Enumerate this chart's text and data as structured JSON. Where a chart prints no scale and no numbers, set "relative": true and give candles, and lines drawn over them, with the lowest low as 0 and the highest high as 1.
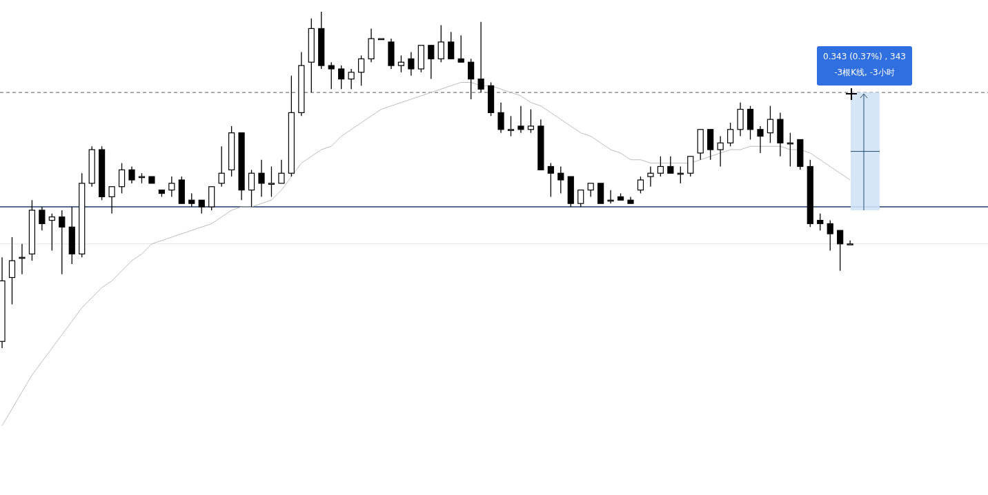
{
  "chart_data": {
    "type": "candlestick",
    "relative": true,
    "color": "#000000",
    "categories": [
      null,
      null,
      null,
      null,
      null,
      null,
      null,
      null,
      null,
      null,
      null,
      null,
      null,
      null,
      null,
      null,
      null,
      null,
      null,
      null,
      null,
      null,
      null,
      null,
      null,
      null,
      null,
      null,
      null,
      null,
      null,
      null,
      null,
      null,
      null,
      null,
      null,
      null,
      null,
      null,
      null,
      null,
      null,
      null,
      null,
      null,
      null,
      null,
      null,
      null,
      null,
      null,
      null,
      null,
      null,
      null,
      null,
      null,
      null,
      null,
      null,
      null,
      null,
      null,
      null,
      null,
      null,
      null,
      null,
      null,
      null,
      null,
      null,
      null,
      null,
      null,
      null,
      null,
      null,
      null,
      null,
      null,
      null,
      null,
      null,
      null,
      null,
      null,
      null,
      null,
      null,
      null,
      null,
      null,
      null,
      null,
      null,
      null,
      null
    ],
    "ohlc": [
      [
        0.02,
        0.27,
        0,
        0.2
      ],
      [
        0.21,
        0.33,
        0.13,
        0.26
      ],
      [
        0.27,
        0.31,
        0.22,
        0.27
      ],
      [
        0.28,
        0.44,
        0.26,
        0.41
      ],
      [
        0.41,
        0.42,
        0.35,
        0.37
      ],
      [
        0.38,
        0.4,
        0.29,
        0.39
      ],
      [
        0.39,
        0.41,
        0.22,
        0.36
      ],
      [
        0.36,
        0.42,
        0.25,
        0.28
      ],
      [
        0.28,
        0.52,
        0.27,
        0.49
      ],
      [
        0.49,
        0.6,
        0.48,
        0.59
      ],
      [
        0.59,
        0.6,
        0.44,
        0.45
      ],
      [
        0.45,
        0.48,
        0.4,
        0.48
      ],
      [
        0.48,
        0.55,
        0.46,
        0.53
      ],
      [
        0.53,
        0.54,
        0.49,
        0.5
      ],
      [
        0.51,
        0.52,
        0.49,
        0.51
      ],
      [
        0.51,
        0.51,
        0.49,
        0.49
      ],
      [
        0.47,
        0.47,
        0.45,
        0.46
      ],
      [
        0.47,
        0.51,
        0.45,
        0.49
      ],
      [
        0.5,
        0.51,
        0.43,
        0.43
      ],
      [
        0.44,
        0.46,
        0.42,
        0.43
      ],
      [
        0.44,
        0.44,
        0.4,
        0.42
      ],
      [
        0.42,
        0.48,
        0.41,
        0.48
      ],
      [
        0.49,
        0.6,
        0.48,
        0.52
      ],
      [
        0.53,
        0.66,
        0.51,
        0.64
      ],
      [
        0.64,
        0.64,
        0.44,
        0.47
      ],
      [
        0.47,
        0.53,
        0.42,
        0.52
      ],
      [
        0.52,
        0.56,
        0.45,
        0.49
      ],
      [
        0.49,
        0.54,
        0.45,
        0.49
      ],
      [
        0.49,
        0.56,
        0.49,
        0.52
      ],
      [
        0.52,
        0.81,
        0.51,
        0.7
      ],
      [
        0.7,
        0.88,
        0.69,
        0.84
      ],
      [
        0.85,
        0.98,
        0.76,
        0.95
      ],
      [
        0.95,
        1,
        0.83,
        0.84
      ],
      [
        0.84,
        0.85,
        0.77,
        0.83
      ],
      [
        0.83,
        0.84,
        0.77,
        0.8
      ],
      [
        0.8,
        0.83,
        0.77,
        0.82
      ],
      [
        0.82,
        0.87,
        0.78,
        0.86
      ],
      [
        0.86,
        0.95,
        0.85,
        0.92
      ],
      [
        0.92,
        0.92,
        0.92,
        0.92
      ],
      [
        0.91,
        0.92,
        0.83,
        0.84
      ],
      [
        0.84,
        0.87,
        0.82,
        0.85
      ],
      [
        0.86,
        0.88,
        0.81,
        0.83
      ],
      [
        0.83,
        0.9,
        0.82,
        0.9
      ],
      [
        0.9,
        0.9,
        0.8,
        0.86
      ],
      [
        0.86,
        0.96,
        0.85,
        0.91
      ],
      [
        0.91,
        0.94,
        0.86,
        0.86
      ],
      [
        0.86,
        0.93,
        0.85,
        0.85
      ],
      [
        0.85,
        0.86,
        0.74,
        0.8
      ],
      [
        0.8,
        0.97,
        0.76,
        0.77
      ],
      [
        0.78,
        0.79,
        0.69,
        0.7
      ],
      [
        0.7,
        0.73,
        0.64,
        0.65
      ],
      [
        0.65,
        0.69,
        0.63,
        0.65
      ],
      [
        0.66,
        0.72,
        0.64,
        0.65
      ],
      [
        0.65,
        0.71,
        0.64,
        0.66
      ],
      [
        0.66,
        0.68,
        0.53,
        0.53
      ],
      [
        0.54,
        0.55,
        0.45,
        0.52
      ],
      [
        0.52,
        0.54,
        0.46,
        0.5
      ],
      [
        0.51,
        0.51,
        0.42,
        0.43
      ],
      [
        0.43,
        0.47,
        0.42,
        0.47
      ],
      [
        0.47,
        0.49,
        0.45,
        0.49
      ],
      [
        0.49,
        0.49,
        0.43,
        0.43
      ],
      [
        0.44,
        0.47,
        0.43,
        0.44
      ],
      [
        0.45,
        0.46,
        0.44,
        0.44
      ],
      [
        0.44,
        0.45,
        0.43,
        0.43
      ],
      [
        0.47,
        0.51,
        0.46,
        0.5
      ],
      [
        0.51,
        0.54,
        0.48,
        0.52
      ],
      [
        0.52,
        0.57,
        0.51,
        0.54
      ],
      [
        0.54,
        0.57,
        0.52,
        0.52
      ],
      [
        0.52,
        0.54,
        0.49,
        0.52
      ],
      [
        0.52,
        0.57,
        0.51,
        0.57
      ],
      [
        0.58,
        0.65,
        0.56,
        0.65
      ],
      [
        0.65,
        0.65,
        0.56,
        0.59
      ],
      [
        0.59,
        0.63,
        0.54,
        0.61
      ],
      [
        0.61,
        0.67,
        0.6,
        0.65
      ],
      [
        0.65,
        0.73,
        0.63,
        0.71
      ],
      [
        0.71,
        0.72,
        0.62,
        0.65
      ],
      [
        0.65,
        0.66,
        0.58,
        0.63
      ],
      [
        0.64,
        0.72,
        0.61,
        0.68
      ],
      [
        0.68,
        0.7,
        0.57,
        0.61
      ],
      [
        0.61,
        0.64,
        0.54,
        0.61
      ],
      [
        0.62,
        0.62,
        0.53,
        0.54
      ],
      [
        0.54,
        0.56,
        0.36,
        0.37
      ],
      [
        0.38,
        0.4,
        0.35,
        0.37
      ],
      [
        0.37,
        0.38,
        0.29,
        0.34
      ],
      [
        0.35,
        0.35,
        0.23,
        0.31
      ],
      [
        0.31,
        0.32,
        0.31,
        0.31
      ],
      null,
      null,
      null,
      null,
      null,
      null,
      null,
      null,
      null,
      null,
      null,
      null,
      null
    ],
    "series": [
      {
        "type": "line",
        "color": "#bdbdbd",
        "values": [
          -0.23,
          -0.18,
          -0.13,
          -0.08,
          -0.04,
          0,
          0.04,
          0.08,
          0.12,
          0.15,
          0.18,
          0.2,
          0.23,
          0.26,
          0.28,
          0.31,
          0.32,
          0.33,
          0.34,
          0.35,
          0.36,
          0.37,
          0.39,
          0.41,
          0.42,
          0.42,
          0.43,
          0.44,
          0.47,
          0.51,
          0.55,
          0.57,
          0.59,
          0.6,
          0.63,
          0.65,
          0.67,
          0.69,
          0.71,
          0.72,
          0.73,
          0.74,
          0.75,
          0.76,
          0.77,
          0.78,
          0.79,
          0.79,
          0.78,
          0.78,
          0.77,
          0.76,
          0.75,
          0.73,
          0.72,
          0.7,
          0.68,
          0.66,
          0.64,
          0.63,
          0.61,
          0.59,
          0.58,
          0.56,
          0.56,
          0.55,
          0.55,
          0.55,
          0.55,
          0.55,
          0.56,
          0.57,
          0.58,
          0.59,
          0.59,
          0.6,
          0.6,
          0.6,
          0.6,
          0.59,
          0.59,
          0.58,
          0.56,
          0.54,
          0.52,
          0.5,
          null,
          null,
          null,
          null,
          null,
          null,
          null,
          null,
          null,
          null,
          null,
          null,
          null
        ]
      }
    ],
    "ref_lines": [
      {
        "axis": "y",
        "value": 0.76,
        "color": "#555555",
        "line_style": "dashed"
      },
      {
        "axis": "y",
        "value": 0.42,
        "color": "#1f3a66",
        "line_style": "solid"
      },
      {
        "axis": "y",
        "value": 0.31,
        "color": "#e3e3e3",
        "line_style": "solid"
      }
    ],
    "annotations": [
      "0.343 (0.37%) , 343",
      "-3根K线, -3小时"
    ]
  }
}
